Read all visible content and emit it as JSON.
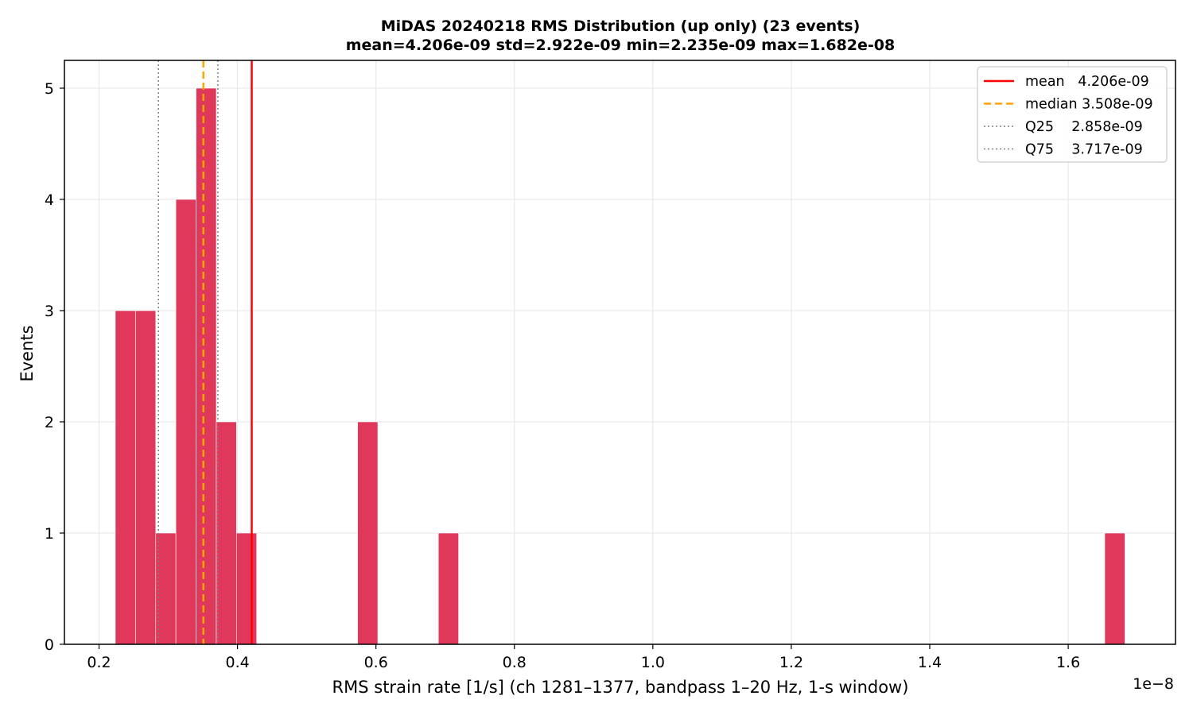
{
  "chart_data": {
    "type": "bar",
    "title": "MiDAS 20240218  RMS Distribution  (up only)  (23 events)",
    "subtitle": "mean=4.206e-09  std=2.922e-09  min=2.235e-09  max=1.682e-08",
    "xlabel": "RMS strain rate [1/s]  (ch 1281–1377, bandpass 1–20 Hz, 1-s window)",
    "ylabel": "Events",
    "x_offset_label": "1e−8",
    "xlim": [
      0.15,
      1.755
    ],
    "ylim": [
      0,
      5.25
    ],
    "x_ticks": [
      0.2,
      0.4,
      0.6,
      0.8,
      1.0,
      1.2,
      1.4,
      1.6
    ],
    "x_tick_labels": [
      "0.2",
      "0.4",
      "0.6",
      "0.8",
      "1.0",
      "1.2",
      "1.4",
      "1.6"
    ],
    "y_ticks": [
      0,
      1,
      2,
      3,
      4,
      5
    ],
    "y_tick_labels": [
      "0",
      "1",
      "2",
      "3",
      "4",
      "5"
    ],
    "grid": true,
    "bar_color": "#e0385a",
    "bins": [
      {
        "x0": 0.2235,
        "x1": 0.2527,
        "count": 3
      },
      {
        "x0": 0.2527,
        "x1": 0.2819,
        "count": 3
      },
      {
        "x0": 0.2819,
        "x1": 0.311,
        "count": 1
      },
      {
        "x0": 0.311,
        "x1": 0.3402,
        "count": 4
      },
      {
        "x0": 0.3402,
        "x1": 0.3694,
        "count": 5
      },
      {
        "x0": 0.3694,
        "x1": 0.3985,
        "count": 2
      },
      {
        "x0": 0.3985,
        "x1": 0.4277,
        "count": 1
      },
      {
        "x0": 0.5735,
        "x1": 0.6027,
        "count": 2
      },
      {
        "x0": 0.6902,
        "x1": 0.7194,
        "count": 1
      },
      {
        "x0": 1.6528,
        "x1": 1.682,
        "count": 1
      }
    ],
    "reference_lines": [
      {
        "name": "mean",
        "legend_label": "mean   4.206e-09",
        "x": 0.4206,
        "color": "#ff0000",
        "style": "solid"
      },
      {
        "name": "median",
        "legend_label": "median 3.508e-09",
        "x": 0.3508,
        "color": "#ffa500",
        "style": "dashed"
      },
      {
        "name": "Q25",
        "legend_label": "Q25    2.858e-09",
        "x": 0.2858,
        "color": "#808080",
        "style": "dotted"
      },
      {
        "name": "Q75",
        "legend_label": "Q75    3.717e-09",
        "x": 0.3717,
        "color": "#808080",
        "style": "dotted"
      }
    ],
    "legend_position": "top-right"
  }
}
